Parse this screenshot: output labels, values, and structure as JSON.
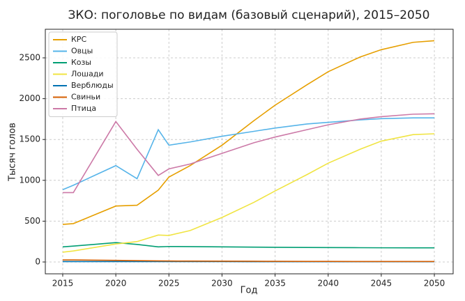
{
  "chart_data": {
    "type": "line",
    "title": "ЗКО: поголовье по видам (базовый сценарий), 2015–2050",
    "x_label": "Год",
    "y_label": "Тысяч голов",
    "x": [
      2015,
      2016,
      2020,
      2022,
      2024,
      2025,
      2027,
      2030,
      2033,
      2035,
      2038,
      2040,
      2043,
      2045,
      2048,
      2050
    ],
    "series": [
      {
        "name": "КРС",
        "color": "#e69f00",
        "values": [
          460,
          470,
          685,
          695,
          880,
          1040,
          1180,
          1430,
          1730,
          1920,
          2170,
          2330,
          2510,
          2600,
          2690,
          2710
        ]
      },
      {
        "name": "Овцы",
        "color": "#56b4e9",
        "values": [
          885,
          940,
          1180,
          1020,
          1620,
          1430,
          1470,
          1540,
          1600,
          1640,
          1690,
          1710,
          1740,
          1755,
          1765,
          1765
        ]
      },
      {
        "name": "Козы",
        "color": "#009e73",
        "values": [
          185,
          195,
          237,
          215,
          185,
          190,
          188,
          185,
          182,
          180,
          178,
          177,
          175,
          174,
          173,
          173
        ]
      },
      {
        "name": "Лошади",
        "color": "#f0e442",
        "values": [
          120,
          135,
          220,
          250,
          330,
          325,
          385,
          545,
          730,
          870,
          1070,
          1210,
          1380,
          1480,
          1560,
          1570
        ]
      },
      {
        "name": "Верблюды",
        "color": "#0072b2",
        "values": [
          5,
          5,
          5,
          5,
          5,
          5,
          5,
          5,
          4,
          4,
          4,
          4,
          4,
          4,
          4,
          4
        ]
      },
      {
        "name": "Свиньи",
        "color": "#d55e00",
        "values": [
          25,
          25,
          20,
          17,
          13,
          12,
          11,
          10,
          9,
          8,
          7,
          7,
          6,
          6,
          6,
          6
        ]
      },
      {
        "name": "Птица",
        "color": "#cc79a7",
        "values": [
          850,
          850,
          1720,
          1380,
          1060,
          1140,
          1200,
          1330,
          1460,
          1530,
          1620,
          1680,
          1750,
          1780,
          1810,
          1815
        ]
      }
    ],
    "xlim": [
      2013.36,
      2051.77
    ],
    "xticks": [
      2015,
      2020,
      2025,
      2030,
      2035,
      2040,
      2045,
      2050
    ],
    "ylim": [
      -145,
      2850
    ],
    "yticks": [
      0,
      500,
      1000,
      1500,
      2000,
      2500
    ],
    "grid": true,
    "legend": "upper-left"
  }
}
